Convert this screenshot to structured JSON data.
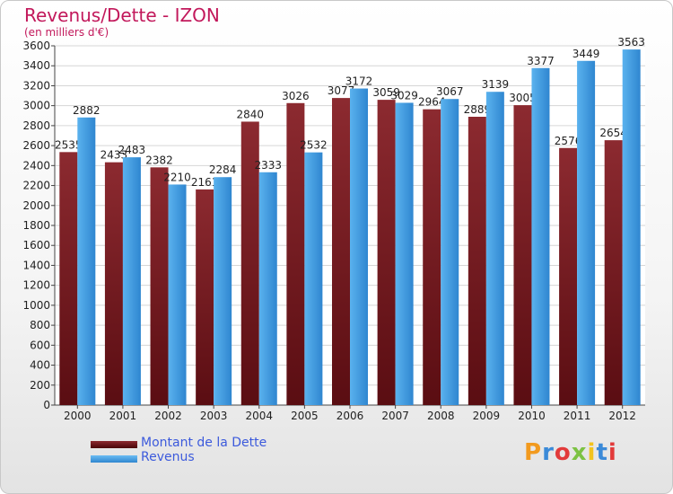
{
  "title": "Revenus/Dette - IZON",
  "subtitle": "(en milliers d'€)",
  "legend": {
    "debt_label": "Montant de la Dette",
    "revenue_label": "Revenus"
  },
  "logo": {
    "text": "Proxiti"
  },
  "colors": {
    "debt": "#7a1e24",
    "revenue": "#4aa3e6",
    "title": "#c2185b",
    "legend_text": "#3c5adc"
  },
  "chart_data": {
    "type": "bar",
    "categories": [
      "2000",
      "2001",
      "2002",
      "2003",
      "2004",
      "2005",
      "2006",
      "2007",
      "2008",
      "2009",
      "2010",
      "2011",
      "2012"
    ],
    "series": [
      {
        "name": "Montant de la Dette",
        "values": [
          2535,
          2433,
          2382,
          2161,
          2840,
          3026,
          3077,
          3059,
          2964,
          2889,
          3005,
          2576,
          2654
        ]
      },
      {
        "name": "Revenus",
        "values": [
          2882,
          2483,
          2210,
          2284,
          2333,
          2532,
          3172,
          3029,
          3067,
          3139,
          3377,
          3449,
          3563
        ]
      }
    ],
    "ylim": [
      0,
      3600
    ],
    "yticks": [
      0,
      200,
      400,
      600,
      800,
      1000,
      1200,
      1400,
      1600,
      1800,
      2000,
      2200,
      2400,
      2600,
      2800,
      3000,
      3200,
      3400,
      3600
    ],
    "grid": true
  }
}
